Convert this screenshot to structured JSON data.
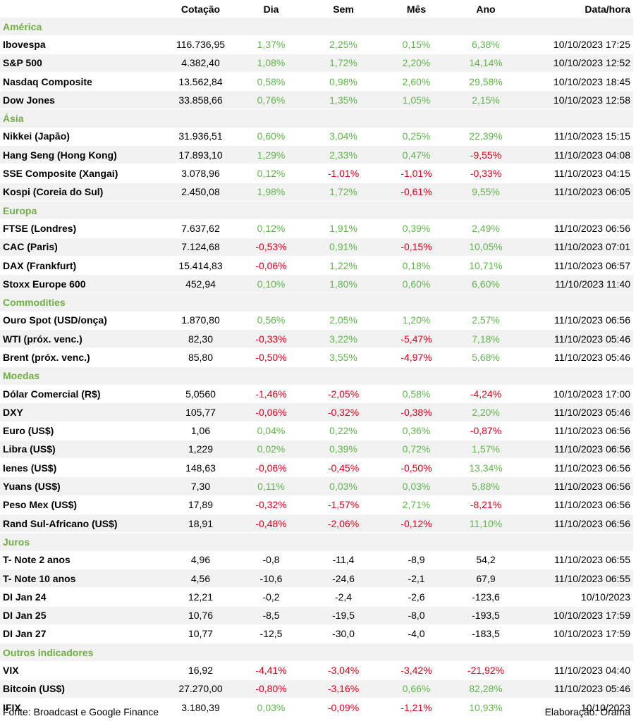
{
  "header": {
    "name": "",
    "cotacao": "Cotação",
    "dia": "Dia",
    "sem": "Sem",
    "mes": "Mês",
    "ano": "Ano",
    "datahora": "Data/hora"
  },
  "sections": [
    {
      "title": "América",
      "rows": [
        [
          "Ibovespa",
          "116.736,95",
          "1,37%",
          "2,25%",
          "0,15%",
          "6,38%",
          "10/10/2023 17:25"
        ],
        [
          "S&P 500",
          "4.382,40",
          "1,08%",
          "1,72%",
          "2,20%",
          "14,14%",
          "10/10/2023 12:52"
        ],
        [
          "Nasdaq Composite",
          "13.562,84",
          "0,58%",
          "0,98%",
          "2,60%",
          "29,58%",
          "10/10/2023 18:45"
        ],
        [
          "Dow Jones",
          "33.858,66",
          "0,76%",
          "1,35%",
          "1,05%",
          "2,15%",
          "10/10/2023 12:58"
        ]
      ]
    },
    {
      "title": "Ásia",
      "rows": [
        [
          "Nikkei (Japão)",
          "31.936,51",
          "0,60%",
          "3,04%",
          "0,25%",
          "22,39%",
          "11/10/2023 15:15"
        ],
        [
          "Hang Seng (Hong Kong)",
          "17.893,10",
          "1,29%",
          "2,33%",
          "0,47%",
          "-9,55%",
          "11/10/2023 04:08"
        ],
        [
          "SSE Composite (Xangai)",
          "3.078,96",
          "0,12%",
          "-1,01%",
          "-1,01%",
          "-0,33%",
          "11/10/2023 04:15"
        ],
        [
          "Kospi (Coreia do Sul)",
          "2.450,08",
          "1,98%",
          "1,72%",
          "-0,61%",
          "9,55%",
          "11/10/2023 06:05"
        ]
      ]
    },
    {
      "title": "Europa",
      "rows": [
        [
          "FTSE (Londres)",
          "7.637,62",
          "0,12%",
          "1,91%",
          "0,39%",
          "2,49%",
          "11/10/2023 06:56"
        ],
        [
          "CAC (Paris)",
          "7.124,68",
          "-0,53%",
          "0,91%",
          "-0,15%",
          "10,05%",
          "11/10/2023 07:01"
        ],
        [
          "DAX (Frankfurt)",
          "15.414,83",
          "-0,06%",
          "1,22%",
          "0,18%",
          "10,71%",
          "11/10/2023 06:57"
        ],
        [
          "Stoxx Europe 600",
          "452,94",
          "0,10%",
          "1,80%",
          "0,60%",
          "6,60%",
          "11/10/2023 11:40"
        ]
      ]
    },
    {
      "title": "Commodities",
      "rows": [
        [
          "Ouro Spot (USD/onça)",
          "1.870,80",
          "0,56%",
          "2,05%",
          "1,20%",
          "2,57%",
          "11/10/2023 06:56"
        ],
        [
          "WTI (próx. venc.)",
          "82,30",
          "-0,33%",
          "3,22%",
          "-5,47%",
          "7,18%",
          "11/10/2023 05:46"
        ],
        [
          "Brent (próx. venc.)",
          "85,80",
          "-0,50%",
          "3,55%",
          "-4,97%",
          "5,68%",
          "11/10/2023 05:46"
        ]
      ]
    },
    {
      "title": "Moedas",
      "rows": [
        [
          "Dólar Comercial (R$)",
          "5,0560",
          "-1,46%",
          "-2,05%",
          "0,58%",
          "-4,24%",
          "10/10/2023 17:00"
        ],
        [
          "DXY",
          "105,77",
          "-0,06%",
          "-0,32%",
          "-0,38%",
          "2,20%",
          "11/10/2023 05:46"
        ],
        [
          "Euro (US$)",
          "1,06",
          "0,04%",
          "0,22%",
          "0,36%",
          "-0,87%",
          "11/10/2023 06:56"
        ],
        [
          "Libra (US$)",
          "1,229",
          "0,02%",
          "0,39%",
          "0,72%",
          "1,57%",
          "11/10/2023 06:56"
        ],
        [
          "Ienes (US$)",
          "148,63",
          "-0,06%",
          "-0,45%",
          "-0,50%",
          "13,34%",
          "11/10/2023 06:56"
        ],
        [
          "Yuans (US$)",
          "7,30",
          "0,11%",
          "0,03%",
          "0,03%",
          "5,88%",
          "11/10/2023 06:56"
        ],
        [
          "Peso Mex (US$)",
          "17,89",
          "-0,32%",
          "-1,57%",
          "2,71%",
          "-8,21%",
          "11/10/2023 06:56"
        ],
        [
          "Rand Sul-Africano (US$)",
          "18,91",
          "-0,48%",
          "-2,06%",
          "-0,12%",
          "11,10%",
          "11/10/2023 06:56"
        ]
      ]
    },
    {
      "title": "Juros",
      "rows": [
        [
          "T- Note 2 anos",
          "4,96",
          "-0,8",
          "-11,4",
          "-8,9",
          "54,2",
          "11/10/2023 06:55"
        ],
        [
          "T- Note 10 anos",
          "4,56",
          "-10,6",
          "-24,6",
          "-2,1",
          "67,9",
          "11/10/2023 06:55"
        ],
        [
          "DI Jan 24",
          "12,21",
          "-0,2",
          "-2,4",
          "-2,6",
          "-123,6",
          "10/10/2023"
        ],
        [
          "DI Jan 25",
          "10,76",
          "-8,5",
          "-19,5",
          "-8,0",
          "-193,5",
          "10/10/2023 17:59"
        ],
        [
          "DI Jan 27",
          "10,77",
          "-12,5",
          "-30,0",
          "-4,0",
          "-183,5",
          "10/10/2023 17:59"
        ]
      ]
    },
    {
      "title": "Outros indicadores",
      "rows": [
        [
          "VIX",
          "16,92",
          "-4,41%",
          "-3,04%",
          "-3,42%",
          "-21,92%",
          "11/10/2023 04:40"
        ],
        [
          "Bitcoin (US$)",
          "27.270,00",
          "-0,80%",
          "-3,16%",
          "0,66%",
          "82,28%",
          "11/10/2023 05:46"
        ],
        [
          "IFIX",
          "3.180,39",
          "0,03%",
          "-0,09%",
          "-1,21%",
          "10,93%",
          "10/10/2023"
        ]
      ]
    }
  ],
  "colors": {
    "positive": "#5fb64a",
    "negative": "#e0001b",
    "section": "#70ad47",
    "stripe": "#f2f2f2"
  },
  "footer": {
    "source": "Fonte: Broadcast e Google Finance",
    "credit": "Elaboração: Órama"
  }
}
